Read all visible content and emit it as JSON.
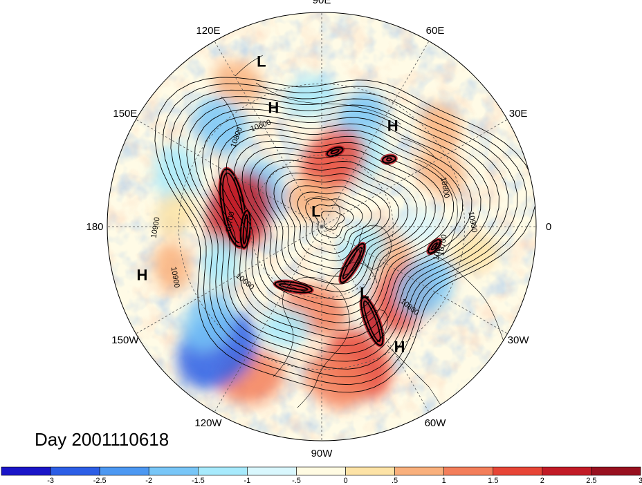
{
  "map": {
    "projection": "north polar stereographic",
    "longitude_labels": [
      {
        "text": "90E",
        "lon": 90
      },
      {
        "text": "60E",
        "lon": 60
      },
      {
        "text": "30E",
        "lon": 30
      },
      {
        "text": "0",
        "lon": 0
      },
      {
        "text": "30W",
        "lon": -30
      },
      {
        "text": "60W",
        "lon": -60
      },
      {
        "text": "90W",
        "lon": -90
      },
      {
        "text": "120W",
        "lon": -120
      },
      {
        "text": "150W",
        "lon": -150
      },
      {
        "text": "180",
        "lon": 180
      },
      {
        "text": "150E",
        "lon": 150
      },
      {
        "text": "120E",
        "lon": 120
      }
    ],
    "pressure_centers": [
      {
        "text": "L",
        "lon": 110,
        "lat": 16
      },
      {
        "text": "H",
        "lon": 112,
        "lat": 36
      },
      {
        "text": "H",
        "lon": 55,
        "lat": 38
      },
      {
        "text": "L",
        "lon": 110,
        "lat": 83
      },
      {
        "text": "H",
        "lon": -165,
        "lat": 12
      },
      {
        "text": "L",
        "lon": -57,
        "lat": 57
      },
      {
        "text": "H",
        "lon": -57,
        "lat": 30
      }
    ],
    "contour_labels": [
      "10800",
      "10600",
      "10900",
      "10700",
      "10900",
      "10800",
      "10900",
      "10700",
      "10800",
      "10600",
      "10900"
    ],
    "day_label": "Day 2001110618"
  },
  "colorbar": {
    "colors": [
      "#1a15c8",
      "#2c5ee6",
      "#4c98f2",
      "#78c6f7",
      "#a7eafc",
      "#d9f7fd",
      "#fffbe2",
      "#fde3a6",
      "#f9b07c",
      "#f37e5a",
      "#e74536",
      "#c21b26",
      "#98101f"
    ],
    "labels": [
      "-3",
      "-2.5",
      "-2",
      "-1.5",
      "-1",
      "-.5",
      "0",
      ".5",
      "1",
      "1.5",
      "2",
      "2.5",
      "3"
    ]
  },
  "anomaly_blobs": [
    {
      "lon": 135,
      "lat": 30,
      "value": -1.4
    },
    {
      "lon": 160,
      "lat": 25,
      "value": -1.2
    },
    {
      "lon": 95,
      "lat": 35,
      "value": -0.9
    },
    {
      "lon": 70,
      "lat": 42,
      "value": -1.3
    },
    {
      "lon": 60,
      "lat": 55,
      "value": -1.0
    },
    {
      "lon": 25,
      "lat": 35,
      "value": 1.0
    },
    {
      "lon": 40,
      "lat": 25,
      "value": 0.8
    },
    {
      "lon": -10,
      "lat": 25,
      "value": 0.7
    },
    {
      "lon": -40,
      "lat": 45,
      "value": 1.9
    },
    {
      "lon": -30,
      "lat": 40,
      "value": -1.6
    },
    {
      "lon": -75,
      "lat": 30,
      "value": 2.0
    },
    {
      "lon": -85,
      "lat": 25,
      "value": 1.5
    },
    {
      "lon": -115,
      "lat": 20,
      "value": 1.6
    },
    {
      "lon": -130,
      "lat": 22,
      "value": -2.6
    },
    {
      "lon": -140,
      "lat": 28,
      "value": -1.4
    },
    {
      "lon": -165,
      "lat": 25,
      "value": 0.8
    },
    {
      "lon": 175,
      "lat": 28,
      "value": 0.7
    },
    {
      "lon": 120,
      "lat": 20,
      "value": 0.9
    },
    {
      "lon": 80,
      "lat": 62,
      "value": 1.8
    },
    {
      "lon": -20,
      "lat": 62,
      "value": 1.2
    },
    {
      "lon": -95,
      "lat": 55,
      "value": 1.5
    },
    {
      "lon": 150,
      "lat": 60,
      "value": -1.5
    },
    {
      "lon": 170,
      "lat": 55,
      "value": 2.3
    },
    {
      "lon": -30,
      "lat": 70,
      "value": -1.0
    },
    {
      "lon": 110,
      "lat": 78,
      "value": 1.0
    },
    {
      "lon": -110,
      "lat": 45,
      "value": -0.8
    },
    {
      "lon": 0,
      "lat": 50,
      "value": -0.7
    },
    {
      "lon": -160,
      "lat": 45,
      "value": -0.8
    }
  ],
  "jet_features": [
    {
      "lon": 168,
      "lat": 52,
      "length": 120,
      "rot": 80
    },
    {
      "lon": -178,
      "lat": 58,
      "length": 60,
      "rot": 95
    },
    {
      "lon": -115,
      "lat": 62,
      "length": 60,
      "rot": 10
    },
    {
      "lon": -50,
      "lat": 70,
      "length": 70,
      "rot": -60
    },
    {
      "lon": -62,
      "lat": 45,
      "length": 80,
      "rot": 70
    },
    {
      "lon": 80,
      "lat": 58,
      "length": 30,
      "rot": -20
    },
    {
      "lon": 45,
      "lat": 50,
      "length": 25,
      "rot": -10
    },
    {
      "lon": -10,
      "lat": 42,
      "length": 30,
      "rot": -50
    }
  ]
}
